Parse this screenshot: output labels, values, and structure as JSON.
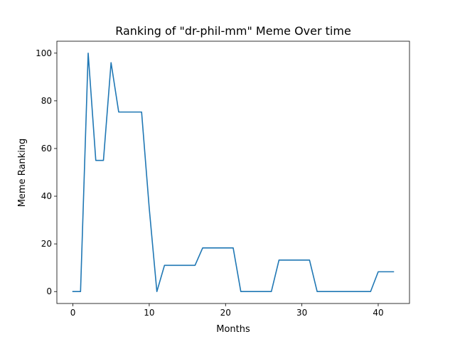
{
  "chart_data": {
    "type": "line",
    "title": "Ranking of \"dr-phil-mm\" Meme Over time",
    "xlabel": "Months",
    "ylabel": "Meme Ranking",
    "xlim": [
      -2.1,
      44.1
    ],
    "ylim": [
      -5,
      105
    ],
    "xticks": [
      0,
      10,
      20,
      30,
      40
    ],
    "yticks": [
      0,
      20,
      40,
      60,
      80,
      100
    ],
    "grid": false,
    "line_color": "#1f77b4",
    "series": [
      {
        "x": [
          0,
          1,
          2,
          3,
          4,
          5,
          6,
          7,
          8,
          9,
          10,
          11,
          12,
          13,
          14,
          15,
          16,
          17,
          18,
          19,
          20,
          21,
          22,
          23,
          24,
          25,
          26,
          27,
          28,
          29,
          30,
          31,
          32,
          33,
          34,
          35,
          36,
          37,
          38,
          39,
          40,
          41,
          42
        ],
        "values": [
          0,
          0,
          100,
          55,
          55,
          96,
          75.3,
          75.3,
          75.3,
          75.3,
          35,
          0,
          11,
          11,
          11,
          11,
          11,
          18.3,
          18.3,
          18.3,
          18.3,
          18.3,
          0,
          0,
          0,
          0,
          0,
          13.2,
          13.2,
          13.2,
          13.2,
          13.2,
          0,
          0,
          0,
          0,
          0,
          0,
          0,
          0,
          8.3,
          8.3,
          8.3
        ]
      }
    ]
  }
}
